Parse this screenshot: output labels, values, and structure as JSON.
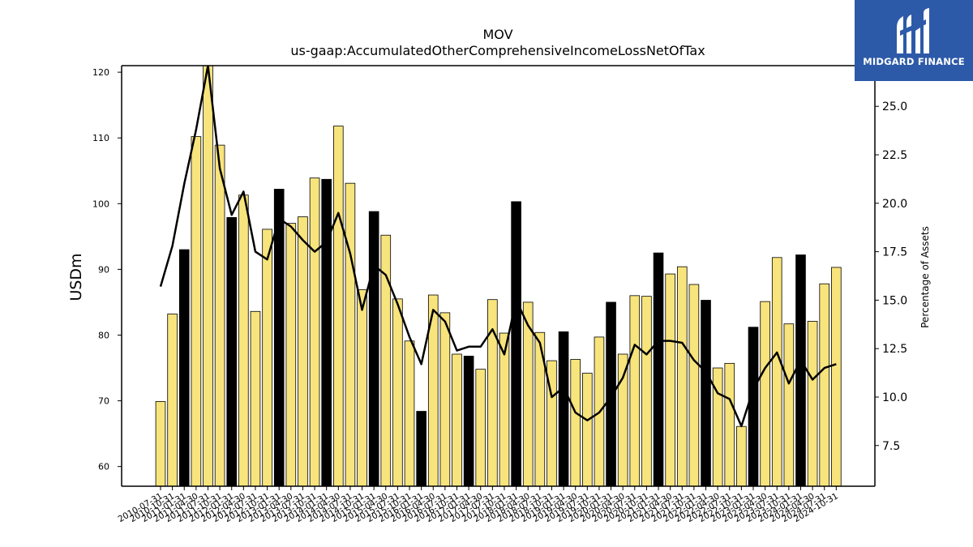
{
  "brand": {
    "name": "MIDGARD FINANCE",
    "color": "#2d5aa8"
  },
  "chart_data": {
    "type": "bar",
    "title": "MOV",
    "subtitle": "us-gaap:AccumulatedOtherComprehensiveIncomeLossNetOfTax",
    "ylabel": "USDm",
    "y2label": "Percentage of Assets",
    "ylim": [
      57,
      121
    ],
    "y2lim": [
      5.4,
      27.1
    ],
    "yticks": [
      60,
      70,
      80,
      90,
      100,
      110,
      120
    ],
    "y2ticks": [
      "7.5",
      "10.0",
      "12.5",
      "15.0",
      "17.5",
      "20.0",
      "22.5",
      "25.0"
    ],
    "bar_colors": {
      "default": "#f8e47c",
      "highlight": "#000000"
    },
    "line_color": "#000000",
    "categories": [
      "2010-07-31",
      "2010-10-31",
      "2011-01-31",
      "2011-04-30",
      "2011-07-31",
      "2011-10-31",
      "2012-01-31",
      "2012-04-30",
      "2012-07-31",
      "2012-10-31",
      "2013-01-31",
      "2013-04-30",
      "2013-07-31",
      "2013-10-31",
      "2014-01-31",
      "2014-04-30",
      "2014-07-31",
      "2014-10-31",
      "2015-01-31",
      "2015-04-30",
      "2015-07-31",
      "2015-10-31",
      "2016-01-31",
      "2016-04-30",
      "2016-07-31",
      "2016-10-31",
      "2017-01-31",
      "2017-04-30",
      "2017-07-31",
      "2017-10-31",
      "2018-01-31",
      "2018-04-30",
      "2018-07-31",
      "2018-10-31",
      "2019-01-31",
      "2019-04-30",
      "2019-07-31",
      "2019-10-31",
      "2020-01-31",
      "2020-04-30",
      "2020-07-31",
      "2020-10-31",
      "2021-01-31",
      "2021-04-30",
      "2021-07-31",
      "2021-10-31",
      "2022-01-31",
      "2022-04-30",
      "2022-07-31",
      "2022-10-31",
      "2023-01-31",
      "2023-04-30",
      "2023-07-31",
      "2023-10-31",
      "2024-01-31",
      "2024-04-30",
      "2024-07-31",
      "2024-10-31"
    ],
    "xtick_labels": [
      "2010-07-31",
      "2010-10-31",
      "2011-01-31",
      "2011-04-30",
      "2011-07-31",
      "2011-10-31",
      "2012-01-31",
      "2012-04-30",
      "2012-07-31",
      "2012-10-31",
      "2013-01-31",
      "2013-04-30",
      "2013-07-31",
      "2013-10-31",
      "2014-01-31",
      "2014-04-30",
      "2014-07-31",
      "2014-10-31",
      "2015-01-31",
      "2015-04-30",
      "2015-07-31",
      "2015-10-31",
      "2016-01-31",
      "2016-04-30",
      "2016-07-31",
      "2016-10-31",
      "2017-01-31",
      "2017-04-30",
      "2017-07-31",
      "2017-10-31",
      "2018-01-31",
      "2018-04-30",
      "2018-07-31",
      "2018-10-31",
      "2019-01-31",
      "2019-04-30",
      "2019-07-31",
      "2019-10-31",
      "2020-01-31",
      "2020-04-30",
      "2020-07-31",
      "2020-10-31",
      "2021-01-31",
      "2021-04-30",
      "2021-07-31",
      "2021-10-31",
      "2022-01-31",
      "2022-04-30",
      "2022-07-31",
      "2022-10-31",
      "2023-01-31",
      "2023-04-30",
      "2023-07-31",
      "2023-10-31",
      "2024-01-31",
      "2024-04-30",
      "2024-07-31",
      "2024-10-31"
    ],
    "values": [
      69.9,
      83.2,
      93.0,
      110.2,
      122.0,
      108.9,
      97.9,
      101.3,
      83.6,
      96.1,
      102.2,
      97.0,
      98.0,
      103.9,
      103.7,
      111.8,
      103.1,
      86.9,
      98.8,
      95.2,
      85.5,
      79.1,
      68.4,
      86.1,
      83.4,
      77.1,
      76.8,
      74.8,
      85.4,
      80.3,
      100.3,
      85.0,
      80.4,
      76.1,
      80.5,
      76.3,
      74.2,
      79.7,
      85.0,
      77.1,
      86.0,
      85.9,
      92.5,
      89.3,
      90.4,
      87.7,
      85.3,
      75.0,
      75.7,
      66.1,
      81.2,
      85.1,
      91.8,
      81.7,
      92.2,
      82.1,
      87.8,
      90.3
    ],
    "highlight": [
      false,
      false,
      true,
      false,
      false,
      false,
      true,
      false,
      false,
      false,
      true,
      false,
      false,
      false,
      true,
      false,
      false,
      false,
      true,
      false,
      false,
      false,
      true,
      false,
      false,
      false,
      true,
      false,
      false,
      false,
      true,
      false,
      false,
      false,
      true,
      false,
      false,
      false,
      true,
      false,
      false,
      false,
      true,
      false,
      false,
      false,
      true,
      false,
      false,
      false,
      true,
      false,
      false,
      false,
      true,
      false,
      false,
      false
    ],
    "line_values": [
      15.7,
      17.8,
      21.0,
      23.8,
      27.1,
      21.8,
      19.4,
      20.6,
      17.5,
      17.1,
      19.2,
      18.8,
      18.1,
      17.5,
      18.0,
      19.5,
      17.4,
      14.5,
      16.8,
      16.3,
      14.8,
      13.1,
      11.7,
      14.5,
      13.9,
      12.4,
      12.6,
      12.6,
      13.5,
      12.2,
      15.0,
      13.7,
      12.8,
      10.0,
      10.5,
      9.2,
      8.8,
      9.2,
      10.0,
      11.0,
      12.7,
      12.2,
      12.9,
      12.9,
      12.8,
      11.9,
      11.3,
      10.2,
      9.9,
      8.5,
      10.4,
      11.5,
      12.3,
      10.7,
      11.9,
      10.9,
      11.5,
      11.7
    ]
  }
}
